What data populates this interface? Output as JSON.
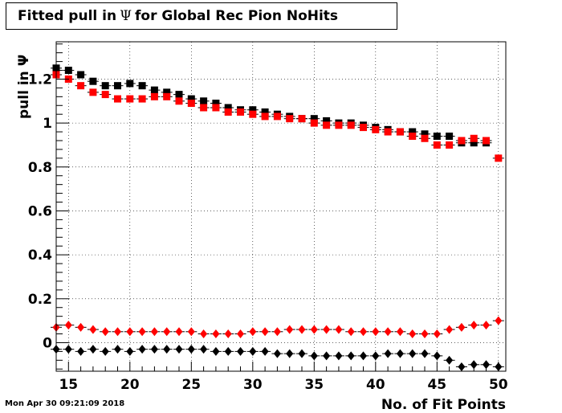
{
  "chart_data": {
    "type": "scatter",
    "title_prefix": "Fitted pull in",
    "title_symbol": "Ψ",
    "title_suffix": "for Global Rec Pion NoHits",
    "xlabel": "No. of Fit Points",
    "ylabel": "pull in Ψ",
    "xlim": [
      14,
      50.6
    ],
    "ylim": [
      -0.13,
      1.37
    ],
    "x_ticks": [
      15,
      20,
      25,
      30,
      35,
      40,
      45,
      50
    ],
    "y_ticks": [
      0,
      0.2,
      0.4,
      0.6,
      0.8,
      1,
      1.2
    ],
    "y_tick_labels": [
      "0",
      "0.2",
      "0.4",
      "0.6",
      "0.8",
      "1",
      "1.2"
    ],
    "x_tick_labels": [
      "15",
      "20",
      "25",
      "30",
      "35",
      "40",
      "45",
      "50"
    ],
    "grid": true,
    "x": [
      14,
      15,
      16,
      17,
      18,
      19,
      20,
      21,
      22,
      23,
      24,
      25,
      26,
      27,
      28,
      29,
      30,
      31,
      32,
      33,
      34,
      35,
      36,
      37,
      38,
      39,
      40,
      41,
      42,
      43,
      44,
      45,
      46,
      47,
      48,
      49,
      50
    ],
    "series": [
      {
        "marker": "square",
        "color": "#000000",
        "values": [
          1.25,
          1.24,
          1.22,
          1.19,
          1.17,
          1.17,
          1.18,
          1.17,
          1.15,
          1.14,
          1.13,
          1.11,
          1.1,
          1.09,
          1.07,
          1.06,
          1.06,
          1.05,
          1.04,
          1.03,
          1.02,
          1.02,
          1.01,
          1.0,
          1.0,
          0.99,
          0.98,
          0.97,
          0.96,
          0.96,
          0.95,
          0.94,
          0.94,
          0.91,
          0.91,
          0.91,
          null
        ]
      },
      {
        "marker": "square",
        "color": "#ff0000",
        "values": [
          1.22,
          1.2,
          1.17,
          1.14,
          1.13,
          1.11,
          1.11,
          1.11,
          1.12,
          1.12,
          1.1,
          1.09,
          1.07,
          1.07,
          1.05,
          1.05,
          1.04,
          1.03,
          1.03,
          1.02,
          1.02,
          1.0,
          0.99,
          0.99,
          0.99,
          0.98,
          0.97,
          0.96,
          0.96,
          0.94,
          0.93,
          0.9,
          0.9,
          0.92,
          0.93,
          0.92,
          0.84
        ]
      },
      {
        "marker": "diamond",
        "color": "#ff0000",
        "values": [
          0.07,
          0.08,
          0.07,
          0.06,
          0.05,
          0.05,
          0.05,
          0.05,
          0.05,
          0.05,
          0.05,
          0.05,
          0.04,
          0.04,
          0.04,
          0.04,
          0.05,
          0.05,
          0.05,
          0.06,
          0.06,
          0.06,
          0.06,
          0.06,
          0.05,
          0.05,
          0.05,
          0.05,
          0.05,
          0.04,
          0.04,
          0.04,
          0.06,
          0.07,
          0.08,
          0.08,
          0.1
        ]
      },
      {
        "marker": "diamond",
        "color": "#000000",
        "values": [
          -0.03,
          -0.03,
          -0.04,
          -0.03,
          -0.04,
          -0.03,
          -0.04,
          -0.03,
          -0.03,
          -0.03,
          -0.03,
          -0.03,
          -0.03,
          -0.04,
          -0.04,
          -0.04,
          -0.04,
          -0.04,
          -0.05,
          -0.05,
          -0.05,
          -0.06,
          -0.06,
          -0.06,
          -0.06,
          -0.06,
          -0.06,
          -0.05,
          -0.05,
          -0.05,
          -0.05,
          -0.06,
          -0.08,
          -0.11,
          -0.1,
          -0.1,
          -0.11
        ]
      }
    ]
  },
  "footer": {
    "timestamp": "Mon Apr 30 09:21:09 2018"
  }
}
